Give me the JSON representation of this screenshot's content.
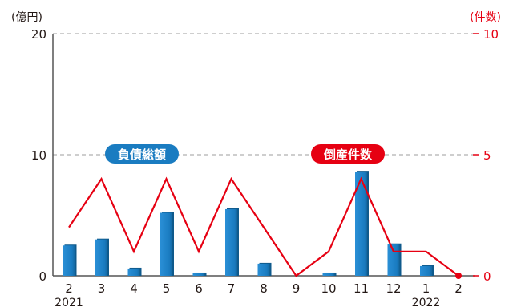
{
  "chart_data": {
    "type": "bar",
    "categories": [
      "2",
      "3",
      "4",
      "5",
      "6",
      "7",
      "8",
      "9",
      "10",
      "11",
      "12",
      "1",
      "2"
    ],
    "year_labels": [
      {
        "index": 0,
        "text": "2021"
      },
      {
        "index": 11,
        "text": "2022"
      }
    ],
    "series": [
      {
        "name": "負債総額",
        "kind": "bar",
        "axis": "left",
        "color": "#1a7cc1",
        "values": [
          2.5,
          3.0,
          0.6,
          5.2,
          0.2,
          5.5,
          1.0,
          0,
          0.2,
          8.6,
          2.6,
          0.8,
          0
        ]
      },
      {
        "name": "倒産件数",
        "kind": "line",
        "axis": "right",
        "color": "#e60012",
        "values": [
          2,
          4,
          1,
          4,
          1,
          4,
          2,
          0,
          1,
          4,
          1,
          1,
          0
        ]
      }
    ],
    "left_axis": {
      "unit": "(億円)",
      "ticks": [
        "0",
        "10",
        "20"
      ],
      "range": [
        0,
        20
      ]
    },
    "right_axis": {
      "unit": "(件数)",
      "ticks": [
        "0",
        "5",
        "10"
      ],
      "range": [
        0,
        10
      ]
    },
    "gridlines": "dashed at 10 and 20 (億円)",
    "legend_placement": "inline labels at the middle gridline"
  }
}
